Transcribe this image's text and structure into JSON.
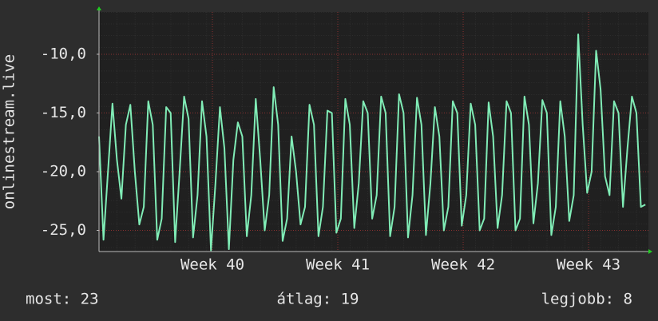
{
  "chart_data": {
    "type": "line",
    "y_label": "onlinestream.live",
    "xlim": [
      0,
      30.67
    ],
    "xticks": [
      {
        "value": 6.33,
        "label": "Week 40"
      },
      {
        "value": 13.33,
        "label": "Week 41"
      },
      {
        "value": 20.33,
        "label": "Week 42"
      },
      {
        "value": 27.33,
        "label": "Week 43"
      }
    ],
    "ylim": [
      -26.8,
      -6.4
    ],
    "yticks": [
      {
        "value": -25,
        "label": "-25,0"
      },
      {
        "value": -20,
        "label": "-20,0"
      },
      {
        "value": -15,
        "label": "-15,0"
      },
      {
        "value": -10,
        "label": "-10,0"
      }
    ],
    "grid": true,
    "stats": [
      "most: 23",
      "átlag: 19",
      "legjobb: 8"
    ],
    "x": [
      0,
      0.25,
      0.5,
      0.75,
      1,
      1.25,
      1.5,
      1.75,
      2,
      2.25,
      2.5,
      2.75,
      3,
      3.25,
      3.5,
      3.75,
      4,
      4.25,
      4.5,
      4.75,
      5,
      5.25,
      5.5,
      5.75,
      6,
      6.25,
      6.5,
      6.75,
      7,
      7.25,
      7.5,
      7.75,
      8,
      8.25,
      8.5,
      8.75,
      9,
      9.25,
      9.5,
      9.75,
      10,
      10.25,
      10.5,
      10.75,
      11,
      11.25,
      11.5,
      11.75,
      12,
      12.25,
      12.5,
      12.75,
      13,
      13.25,
      13.5,
      13.75,
      14,
      14.25,
      14.5,
      14.75,
      15,
      15.25,
      15.5,
      15.75,
      16,
      16.25,
      16.5,
      16.75,
      17,
      17.25,
      17.5,
      17.75,
      18,
      18.25,
      18.5,
      18.75,
      19,
      19.25,
      19.5,
      19.75,
      20,
      20.25,
      20.5,
      20.75,
      21,
      21.25,
      21.5,
      21.75,
      22,
      22.25,
      22.5,
      22.75,
      23,
      23.25,
      23.5,
      23.75,
      24,
      24.25,
      24.5,
      24.75,
      25,
      25.25,
      25.5,
      25.75,
      26,
      26.25,
      26.5,
      26.75,
      27,
      27.25,
      27.5,
      27.75,
      28,
      28.25,
      28.5,
      28.75,
      29,
      29.25,
      29.5,
      29.75,
      30,
      30.25,
      30.5
    ],
    "series": [
      {
        "name": "onlinestream.live",
        "color": "#80ecb6",
        "values": [
          -17,
          -25.8,
          -20,
          -14.2,
          -19,
          -22.3,
          -16,
          -14.3,
          -20,
          -24.5,
          -23,
          -14.0,
          -16,
          -25.8,
          -24,
          -14.5,
          -15,
          -26.0,
          -20,
          -13.6,
          -15.5,
          -25.6,
          -22,
          -14.0,
          -17,
          -26.7,
          -21,
          -14.5,
          -18,
          -26.6,
          -19,
          -15.8,
          -17,
          -25.5,
          -22,
          -13.8,
          -19,
          -25.0,
          -22,
          -12.8,
          -16,
          -25.9,
          -24,
          -17.0,
          -20,
          -24.5,
          -23,
          -14.3,
          -16,
          -25.5,
          -23,
          -14.8,
          -15,
          -25.2,
          -24,
          -13.8,
          -16,
          -24.8,
          -21,
          -14.0,
          -15,
          -24.0,
          -22,
          -13.6,
          -15,
          -25.5,
          -23,
          -13.4,
          -15,
          -25.6,
          -22,
          -13.7,
          -16,
          -25.4,
          -21,
          -14.5,
          -17,
          -25.0,
          -23,
          -14.0,
          -15,
          -24.6,
          -22,
          -14.2,
          -16,
          -25.0,
          -24,
          -14.1,
          -17,
          -24.8,
          -22,
          -14.0,
          -15,
          -25.0,
          -24,
          -13.6,
          -16,
          -24.4,
          -21,
          -13.9,
          -15,
          -25.4,
          -23,
          -14.0,
          -17,
          -24.2,
          -22,
          -8.3,
          -16,
          -21.8,
          -20,
          -9.7,
          -13,
          -20.4,
          -22,
          -14.0,
          -15,
          -23.0,
          -18,
          -13.6,
          -15,
          -23.0,
          -22.8
        ]
      }
    ]
  }
}
